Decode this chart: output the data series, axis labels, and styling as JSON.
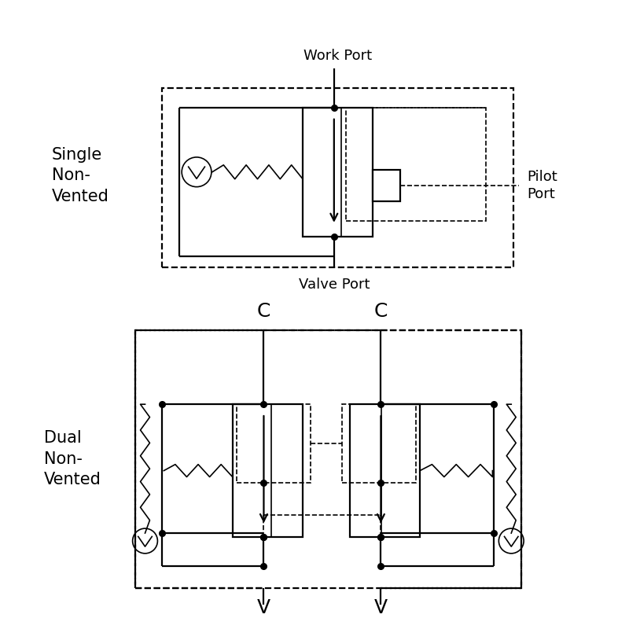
{
  "bg_color": "#ffffff",
  "lw": 1.6,
  "lw_thin": 1.2,
  "dot_size": 5.5,
  "top_label": "Single\nNon-\nVented",
  "bot_label": "Dual\nNon-\nVented",
  "work_port_label": "Work Port",
  "valve_port_label": "Valve Port",
  "pilot_port_label": "Pilot\nPort",
  "c_label": "C",
  "v_label": "V",
  "font_size_label": 15,
  "font_size_port": 13
}
